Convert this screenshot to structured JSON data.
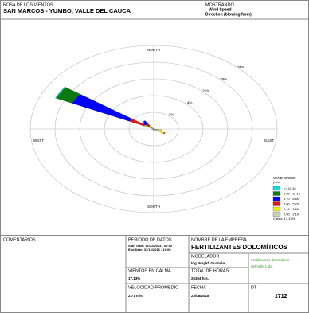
{
  "header": {
    "title": "ROSA DE LOS VIENTOS",
    "location": "SAN MARCOS - YUMBO, VALLE DEL CAUCA",
    "showing": "MOSTRANDO",
    "variable": "Wind Speed",
    "direction_note": "Direction (blowing from)"
  },
  "chart_data": {
    "type": "windrose",
    "x": [
      300,
      310,
      320,
      120,
      100,
      140,
      200,
      250
    ],
    "rlim": [
      0,
      35
    ],
    "rticks": [
      {
        "value": 7,
        "label": "7%"
      },
      {
        "value": 14,
        "label": "14%"
      },
      {
        "value": 21,
        "label": "21%"
      },
      {
        "value": 28,
        "label": "28%"
      },
      {
        "value": 35,
        "label": "35%"
      }
    ],
    "direction_labels": [
      "NORTH",
      "EAST",
      "SOUTH",
      "WEST"
    ],
    "legend_title": "WIND SPEED",
    "legend_units": "(m/s)",
    "calms": "Calms: 17.13%",
    "series": [
      {
        "name": "0.50 - 2.10",
        "color": "#c8d4b4",
        "values": [
          1.5,
          0.8,
          0.8,
          1.5,
          1.2,
          0.8,
          0.6,
          0.6
        ]
      },
      {
        "name": "2.10 - 3.60",
        "color": "#f2f200",
        "values": [
          1.5,
          0.8,
          1.0,
          1.8,
          1.0,
          0.5,
          0,
          0
        ]
      },
      {
        "name": "3.60 - 5.70",
        "color": "#e81010",
        "values": [
          4.5,
          1.0,
          1.0,
          0.3,
          0,
          0,
          0,
          0
        ]
      },
      {
        "name": "5.70 - 8.80",
        "color": "#0000ff",
        "values": [
          18,
          1.0,
          1.5,
          0,
          0,
          0,
          0,
          0
        ]
      },
      {
        "name": "8.80 - 11.10",
        "color": "#0a7a10",
        "values": [
          5,
          0,
          0,
          0,
          0,
          0,
          0,
          0
        ]
      },
      {
        "name": ">= 11.10",
        "color": "#00e0e0",
        "values": [
          0.3,
          0,
          0,
          0,
          0,
          0,
          0,
          0
        ]
      }
    ]
  },
  "footer": {
    "comments": "COMENTARIOS",
    "period_label": "PERIODO DE DATOS",
    "start": "Start Date: 31/12/2013 - 00:00",
    "end": "End Date: 31/12/2016 - 19:00",
    "company_label": "NOMBRE DE LA EMPRESA",
    "company": "FERTILIZANTES DOLOMÍTICOS",
    "modeler_label": "MODELADOR",
    "modeler": "Ing. Maykh Guzmán",
    "company_note_1": "Fertilizantes dolomiticos",
    "company_note_2": "del Valle Ltda.",
    "calm_label": "VIENTOS EN CALMA",
    "calm": "17.13%",
    "hours_label": "TOTAL DE HORAS",
    "hours": "26304 hrs.",
    "speed_label": "VELOCIDAD PROMEDIO",
    "speed": "2.71 m/s",
    "date_label": "FECHA",
    "date": "23/08/2018",
    "dt_label": "DT",
    "dt": "1712"
  }
}
